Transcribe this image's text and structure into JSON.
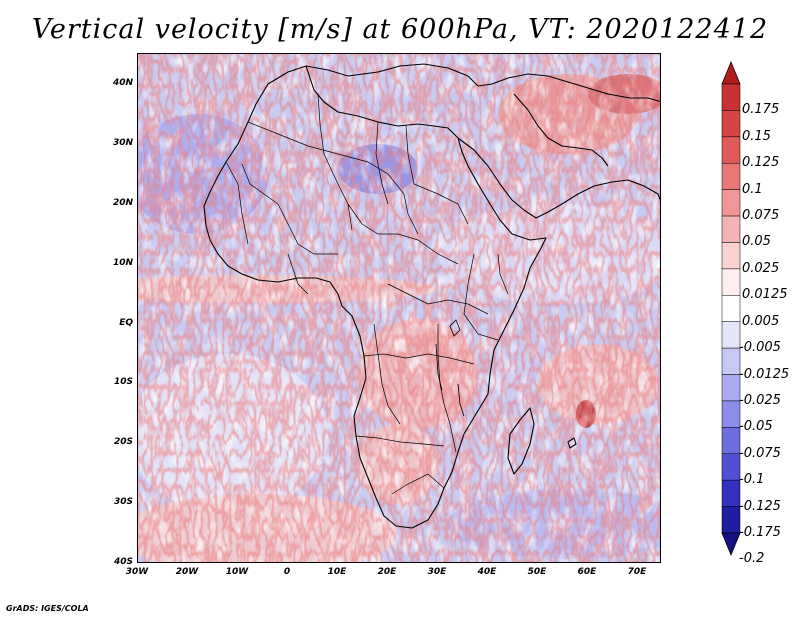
{
  "title": "Vertical velocity [m/s] at 600hPa, VT: 2020122412",
  "footer": "GrADS: IGES/COLA",
  "map": {
    "variable": "Vertical velocity",
    "units": "m/s",
    "level": "600hPa",
    "valid_time": "2020122412",
    "lon_range": [
      -30,
      75
    ],
    "lat_range": [
      -40,
      45
    ],
    "lat_labels": [
      "40N",
      "30N",
      "20N",
      "10N",
      "EQ",
      "10S",
      "20S",
      "30S",
      "40S"
    ],
    "lon_labels": [
      "30W",
      "20W",
      "10W",
      "0",
      "10E",
      "20E",
      "30E",
      "40E",
      "50E",
      "60E",
      "70E"
    ]
  },
  "colorbar": {
    "labels": [
      "0.175",
      "0.15",
      "0.125",
      "0.1",
      "0.075",
      "0.05",
      "0.025",
      "0.0125",
      "0.005",
      "-0.005",
      "-0.0125",
      "-0.025",
      "-0.05",
      "-0.075",
      "-0.1",
      "-0.125",
      "-0.175",
      "-0.2"
    ],
    "colors": [
      "#b21e1e",
      "#c83232",
      "#d64646",
      "#e05a5a",
      "#e87878",
      "#f09696",
      "#f5b4b4",
      "#fad2d2",
      "#ffeeee",
      "#ffffff",
      "#e6e6fa",
      "#c8c8f5",
      "#aaaaf0",
      "#8c8ceb",
      "#6e6ee1",
      "#5050d2",
      "#3232be",
      "#1e1ea0",
      "#140f82"
    ]
  }
}
